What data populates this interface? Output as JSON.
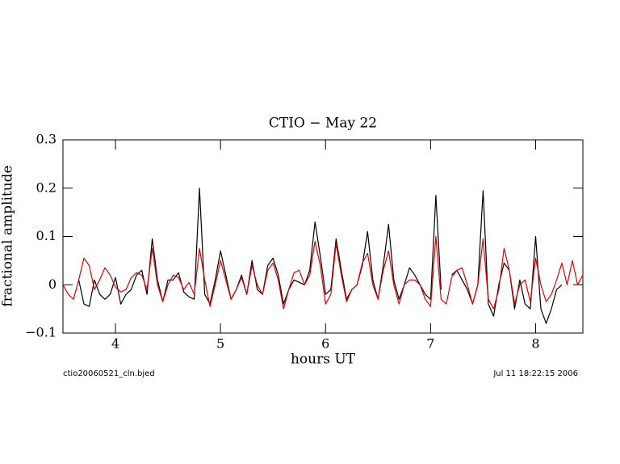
{
  "chart_data": {
    "type": "line",
    "title": "CTIO − May 22",
    "x_label": "hours UT",
    "y_label": "fractional amplitude",
    "footnote_left": "ctio20060521_cln.bjed",
    "footnote_right": "Jul 11 18:22:15 2006",
    "x": [
      3.5,
      3.55,
      3.6,
      3.65,
      3.7,
      3.75,
      3.8,
      3.85,
      3.9,
      3.95,
      4.0,
      4.05,
      4.1,
      4.15,
      4.2,
      4.25,
      4.3,
      4.35,
      4.4,
      4.45,
      4.5,
      4.55,
      4.6,
      4.65,
      4.7,
      4.75,
      4.8,
      4.85,
      4.9,
      4.95,
      5.0,
      5.05,
      5.1,
      5.15,
      5.2,
      5.25,
      5.3,
      5.35,
      5.4,
      5.45,
      5.5,
      5.55,
      5.6,
      5.65,
      5.7,
      5.75,
      5.8,
      5.85,
      5.9,
      5.95,
      6.0,
      6.05,
      6.1,
      6.15,
      6.2,
      6.25,
      6.3,
      6.35,
      6.4,
      6.45,
      6.5,
      6.55,
      6.6,
      6.65,
      6.7,
      6.75,
      6.8,
      6.85,
      6.9,
      6.95,
      7.0,
      7.05,
      7.1,
      7.15,
      7.2,
      7.25,
      7.3,
      7.35,
      7.4,
      7.45,
      7.5,
      7.55,
      7.6,
      7.65,
      7.7,
      7.75,
      7.8,
      7.85,
      7.9,
      7.95,
      8.0,
      8.05,
      8.1,
      8.15,
      8.2,
      8.25,
      8.3,
      8.35,
      8.4,
      8.45
    ],
    "series": [
      {
        "color": "#000000",
        "values": [
          null,
          null,
          null,
          0.01,
          -0.04,
          -0.045,
          0.01,
          -0.02,
          -0.03,
          -0.02,
          0.015,
          -0.04,
          -0.02,
          -0.01,
          0.02,
          0.03,
          -0.02,
          0.095,
          0.01,
          -0.035,
          0.01,
          0.01,
          0.025,
          -0.015,
          -0.025,
          -0.03,
          0.2,
          -0.02,
          -0.04,
          0.01,
          0.07,
          0.02,
          -0.03,
          -0.01,
          0.02,
          -0.02,
          0.05,
          -0.01,
          -0.02,
          0.04,
          0.055,
          0.02,
          -0.04,
          -0.01,
          0.01,
          0.005,
          0.0,
          0.03,
          0.13,
          0.06,
          -0.02,
          -0.01,
          0.095,
          0.03,
          -0.03,
          -0.01,
          0.0,
          0.04,
          0.11,
          0.01,
          -0.03,
          0.04,
          0.125,
          0.01,
          -0.03,
          0.0,
          0.035,
          0.02,
          0.0,
          -0.02,
          -0.03,
          0.185,
          -0.01,
          null,
          0.02,
          0.03,
          0.01,
          -0.01,
          -0.04,
          0.0,
          0.195,
          -0.04,
          -0.065,
          0.0,
          0.045,
          0.03,
          -0.05,
          0.01,
          -0.04,
          -0.05,
          0.1,
          -0.05,
          -0.08,
          -0.05,
          -0.01,
          0.0,
          null,
          null,
          null,
          null
        ]
      },
      {
        "color": "#e00000",
        "values": [
          0.0,
          -0.02,
          -0.03,
          0.01,
          0.055,
          0.04,
          -0.01,
          0.01,
          0.035,
          0.02,
          -0.005,
          -0.015,
          -0.01,
          0.015,
          0.025,
          0.02,
          -0.01,
          0.075,
          0.0,
          -0.035,
          0.0,
          0.02,
          0.015,
          -0.01,
          0.005,
          -0.02,
          0.075,
          0.01,
          -0.045,
          0.0,
          0.05,
          0.01,
          -0.03,
          -0.01,
          0.015,
          -0.02,
          0.04,
          0.0,
          -0.02,
          0.03,
          0.045,
          0.01,
          -0.05,
          -0.01,
          0.025,
          0.03,
          0.0,
          0.02,
          0.09,
          0.04,
          -0.04,
          -0.02,
          0.085,
          0.02,
          -0.035,
          -0.01,
          0.0,
          0.045,
          0.065,
          0.0,
          -0.03,
          0.03,
          0.07,
          0.0,
          -0.04,
          0.0,
          0.01,
          0.01,
          0.0,
          -0.03,
          -0.045,
          0.1,
          -0.03,
          -0.04,
          0.015,
          0.03,
          0.035,
          0.0,
          -0.04,
          0.0,
          0.095,
          -0.03,
          -0.05,
          -0.01,
          0.075,
          0.03,
          -0.04,
          0.0,
          0.01,
          -0.035,
          0.055,
          0.0,
          -0.035,
          -0.02,
          0.01,
          0.045,
          0.0,
          0.05,
          0.0,
          0.02
        ]
      }
    ],
    "xlim": [
      3.5,
      8.45
    ],
    "ylim": [
      -0.1,
      0.3
    ],
    "xticks": [
      4,
      5,
      6,
      7,
      8
    ],
    "yticks": [
      {
        "value": -0.1,
        "label": "−0.1"
      },
      0,
      0.1,
      0.2,
      0.3
    ]
  }
}
